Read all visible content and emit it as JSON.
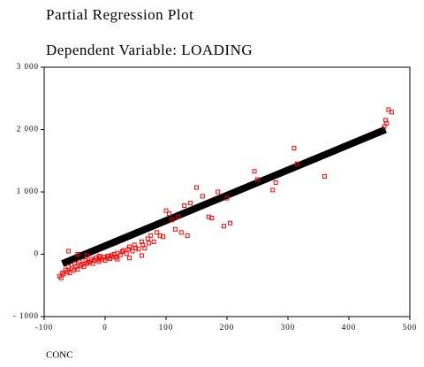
{
  "chart_data": {
    "type": "scatter",
    "title": "Partial Regression Plot",
    "subtitle": "Dependent Variable: LOADING",
    "x_label": "CONC",
    "xlim": [
      -100,
      500
    ],
    "xticks": [
      -100,
      0,
      100,
      200,
      300,
      400,
      500
    ],
    "ylim": [
      -1000,
      3000
    ],
    "yticks": [
      {
        "value": -1000,
        "label": "- 1000"
      },
      0,
      {
        "value": 1000,
        "label": "1 000"
      },
      {
        "value": 2000,
        "label": "2 000"
      },
      {
        "value": 3000,
        "label": "3 000"
      }
    ],
    "points": {
      "color": "#ff0000",
      "x": [
        -75,
        -72,
        -70,
        -68,
        -65,
        -62,
        -60,
        -58,
        -55,
        -52,
        -50,
        -48,
        -45,
        -42,
        -40,
        -38,
        -35,
        -32,
        -30,
        -28,
        -25,
        -22,
        -20,
        -18,
        -15,
        -12,
        -10,
        -8,
        -5,
        -2,
        0,
        3,
        5,
        8,
        10,
        12,
        15,
        18,
        20,
        25,
        28,
        30,
        35,
        38,
        40,
        45,
        48,
        50,
        55,
        60,
        62,
        65,
        70,
        72,
        75,
        80,
        85,
        90,
        95,
        100,
        105,
        110,
        115,
        120,
        125,
        130,
        135,
        140,
        150,
        160,
        170,
        175,
        185,
        195,
        200,
        205,
        245,
        250,
        275,
        280,
        310,
        315,
        360,
        458,
        460,
        462,
        470,
        -60,
        -45,
        -30,
        -10,
        20,
        40,
        60,
        465
      ],
      "y": [
        -350,
        -380,
        -300,
        -320,
        -250,
        -280,
        -200,
        -300,
        -230,
        -260,
        -150,
        -200,
        -240,
        -120,
        -180,
        -160,
        -200,
        -100,
        -150,
        -130,
        -120,
        -80,
        -150,
        -100,
        -60,
        -90,
        -120,
        -50,
        -80,
        -40,
        -100,
        -60,
        -30,
        -70,
        -20,
        -40,
        0,
        -50,
        20,
        -10,
        40,
        60,
        10,
        80,
        120,
        50,
        150,
        100,
        80,
        200,
        150,
        100,
        250,
        180,
        300,
        200,
        350,
        300,
        280,
        700,
        650,
        550,
        400,
        600,
        350,
        780,
        300,
        820,
        1070,
        930,
        600,
        580,
        1000,
        450,
        900,
        500,
        1330,
        1200,
        1030,
        1150,
        1700,
        1450,
        1250,
        2050,
        2150,
        2100,
        2280,
        50,
        0,
        -20,
        -30,
        -80,
        -60,
        -20,
        2320
      ]
    },
    "fit_line": {
      "color": "#000000",
      "x": [
        -70,
        460
      ],
      "y": [
        -150,
        2000
      ]
    }
  }
}
